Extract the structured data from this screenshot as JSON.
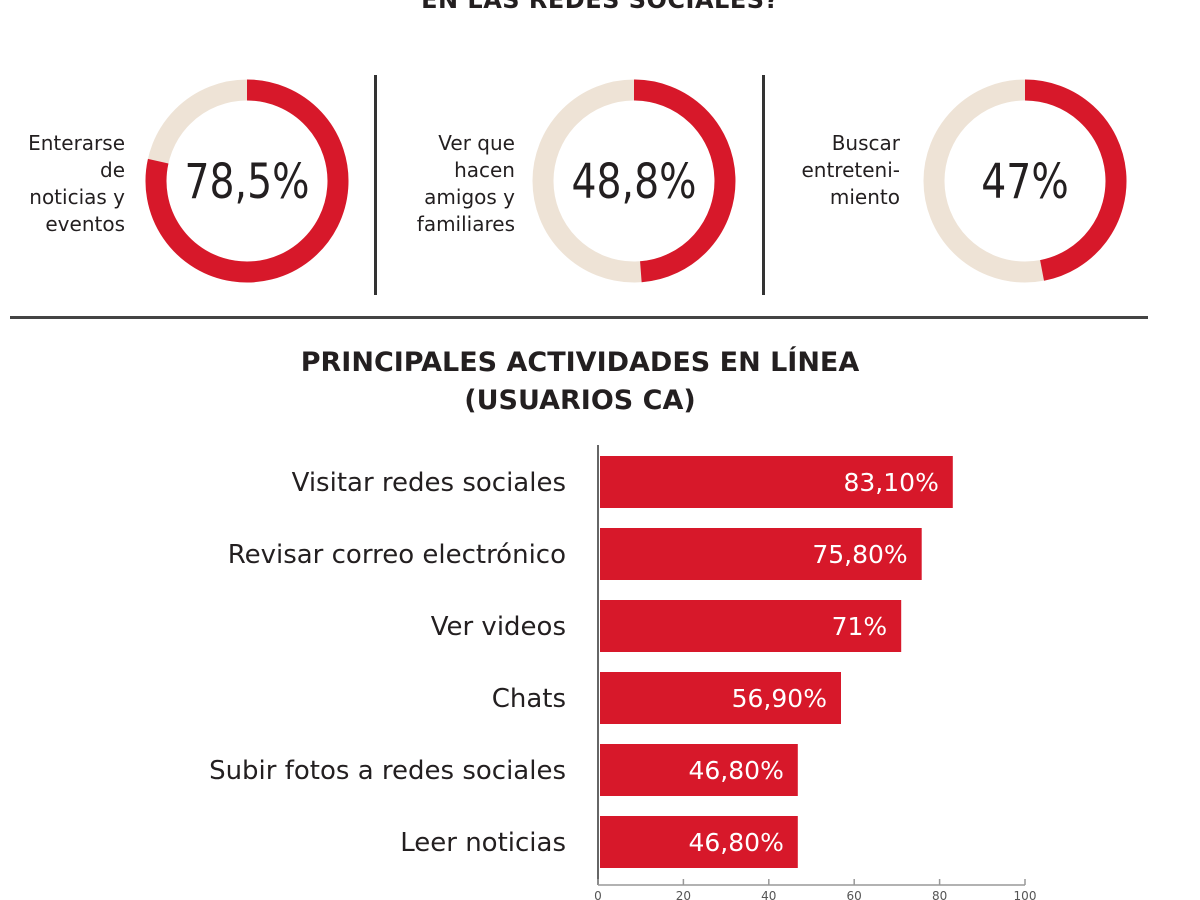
{
  "header": {
    "title_partial": "EN LAS REDES SOCIALES?"
  },
  "donuts": [
    {
      "label_lines": [
        "Enterarse",
        "de",
        "noticias y",
        "eventos"
      ],
      "value_text": "78,5%",
      "value": 78.5
    },
    {
      "label_lines": [
        "Ver que",
        "hacen",
        "amigos y",
        "familiares"
      ],
      "value_text": "48,8%",
      "value": 48.8
    },
    {
      "label_lines": [
        "Buscar",
        "entreteni-",
        "miento"
      ],
      "value_text": "47%",
      "value": 47
    }
  ],
  "bar_section": {
    "title_line1": "PRINCIPALES ACTIVIDADES EN LÍNEA",
    "title_line2": "(USUARIOS CA)"
  },
  "colors": {
    "accent": "#d7182a",
    "track": "#eee3d6",
    "text": "#231f20"
  },
  "chart_data": {
    "type": "bar",
    "orientation": "horizontal",
    "categories": [
      "Visitar redes sociales",
      "Revisar correo electrónico",
      "Ver videos",
      "Chats",
      "Subir fotos a redes sociales",
      "Leer noticias"
    ],
    "values": [
      83.1,
      75.8,
      71,
      56.9,
      46.8,
      46.8
    ],
    "value_labels": [
      "83,10%",
      "75,80%",
      "71%",
      "56,90%",
      "46,80%",
      "46,80%"
    ],
    "xlim": [
      0,
      100
    ],
    "ticks": [
      0,
      20,
      40,
      60,
      80,
      100
    ],
    "grid": false
  }
}
